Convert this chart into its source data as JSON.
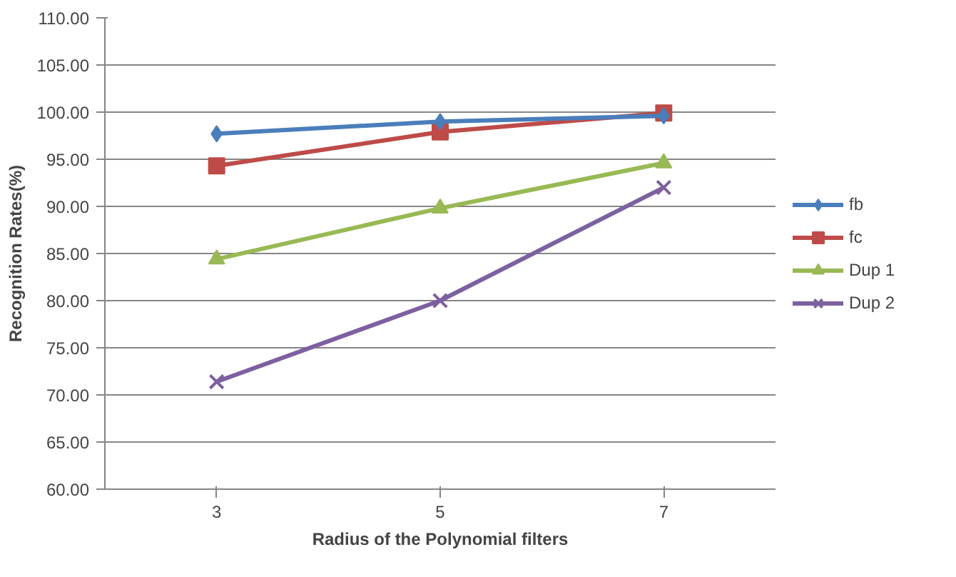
{
  "chart_data": {
    "type": "line",
    "xlabel": "Radius of the Polynomial filters",
    "ylabel": "Recognition Rates(%)",
    "categories": [
      "3",
      "5",
      "7"
    ],
    "series": [
      {
        "name": "fb",
        "color": "#4a7ebb",
        "marker": "diamond",
        "values": [
          97.7,
          99.0,
          99.6
        ]
      },
      {
        "name": "fc",
        "color": "#be4b48",
        "marker": "square",
        "values": [
          94.3,
          97.9,
          99.9
        ]
      },
      {
        "name": "Dup 1",
        "color": "#98b954",
        "marker": "triangle",
        "values": [
          84.4,
          89.8,
          94.6
        ]
      },
      {
        "name": "Dup 2",
        "color": "#7d60a0",
        "marker": "cross",
        "values": [
          71.4,
          80.0,
          92.0
        ]
      }
    ],
    "ylim": [
      60,
      110
    ],
    "yticks": [
      {
        "value": 60,
        "label": "60.00"
      },
      {
        "value": 65,
        "label": "65.00"
      },
      {
        "value": 70,
        "label": "70.00"
      },
      {
        "value": 75,
        "label": "75.00"
      },
      {
        "value": 80,
        "label": "80.00"
      },
      {
        "value": 85,
        "label": "85.00"
      },
      {
        "value": 90,
        "label": "90.00"
      },
      {
        "value": 95,
        "label": "95.00"
      },
      {
        "value": 100,
        "label": "100.00"
      },
      {
        "value": 105,
        "label": "105.00"
      },
      {
        "value": 110,
        "label": "110.00"
      }
    ],
    "grid": "y",
    "legend": "right",
    "line_style": "solid"
  }
}
